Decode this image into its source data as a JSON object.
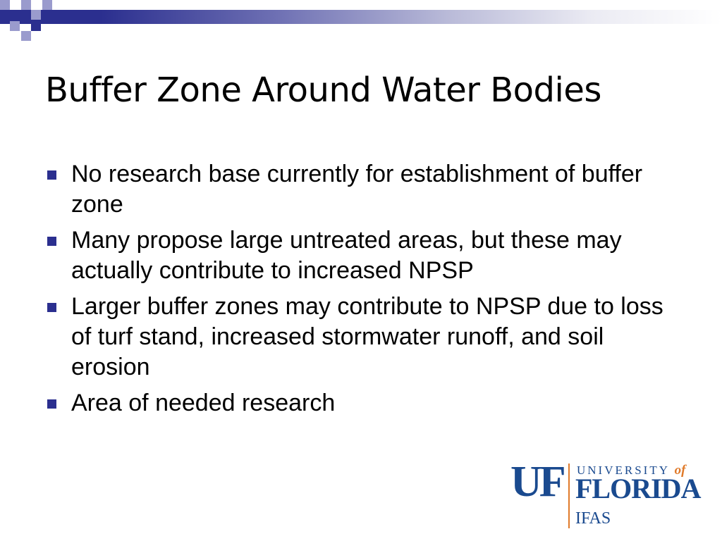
{
  "slide": {
    "title": "Buffer Zone Around Water Bodies",
    "bullets": [
      "No research base currently for establishment of buffer zone",
      "Many propose large untreated areas, but these may actually contribute to increased NPSP",
      "Larger buffer zones may contribute to NPSP due to loss of turf stand, increased stormwater runoff, and soil erosion",
      "Area of needed research"
    ]
  },
  "logo": {
    "uf": "UF",
    "university": "UNIVERSITY",
    "of": "of",
    "florida": "FLORIDA",
    "ifas": "IFAS"
  },
  "colors": {
    "accent_navy": "#2b2f8f",
    "accent_lavender": "#9a9bcd",
    "logo_blue": "#1a4a8f",
    "logo_orange": "#e07a2a"
  }
}
